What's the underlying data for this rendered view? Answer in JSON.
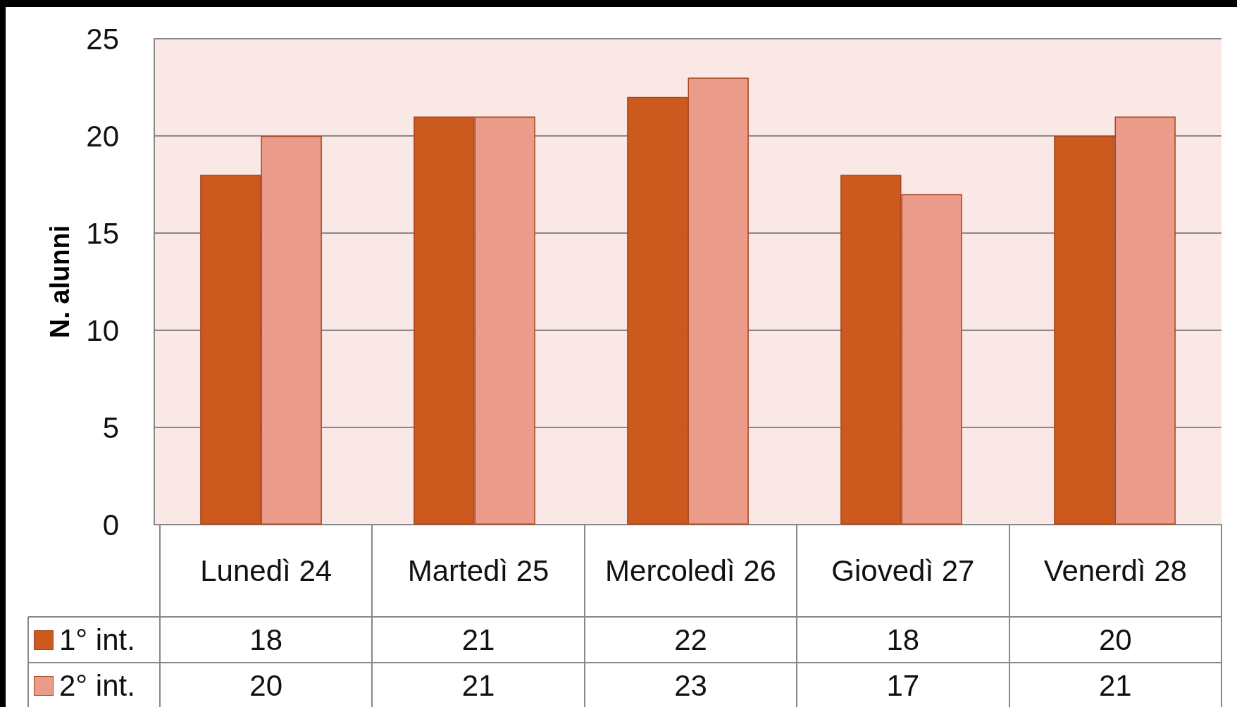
{
  "chart_data": {
    "type": "bar",
    "ylabel": "N. alunni",
    "categories": [
      "Lunedì 24",
      "Martedì 25",
      "Mercoledì 26",
      "Giovedì 27",
      "Venerdì 28"
    ],
    "series": [
      {
        "name": "1° int.",
        "color": "#cc5a1f",
        "values": [
          18,
          21,
          22,
          18,
          20
        ]
      },
      {
        "name": "2° int.",
        "color": "#eb9b89",
        "values": [
          20,
          21,
          23,
          17,
          21
        ]
      }
    ],
    "ylim": [
      0,
      25
    ],
    "yticks": [
      0,
      5,
      10,
      15,
      20,
      25
    ],
    "grid": "y",
    "legend": "bottom",
    "data_labels": true
  }
}
